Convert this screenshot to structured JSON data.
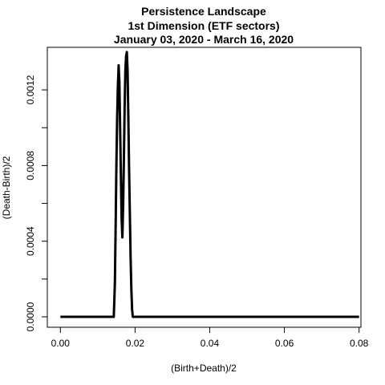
{
  "chart_data": {
    "type": "line",
    "title_lines": [
      "Persistence Landscape",
      "1st Dimension (ETF sectors)",
      "January 03, 2020 - March 16, 2020"
    ],
    "xlabel": "(Birth+Death)/2",
    "ylabel": "(Death-Birth)/2",
    "xlim": [
      -0.0035,
      0.0805
    ],
    "ylim": [
      -5.5e-05,
      0.001425
    ],
    "x_ticks": [
      0.0,
      0.02,
      0.04,
      0.06,
      0.08
    ],
    "x_tick_labels": [
      "0.00",
      "0.02",
      "0.04",
      "0.06",
      "0.08"
    ],
    "y_ticks": [
      0.0,
      0.0004,
      0.0008,
      0.0012
    ],
    "y_tick_labels": [
      "0.0000",
      "0.0004",
      "0.0008",
      "0.0012"
    ],
    "y_minor_ticks": [
      0.0002,
      0.0006,
      0.001
    ],
    "grid": false,
    "series": [
      {
        "color": "#000000",
        "x": [
          0.0,
          0.0143,
          0.0146,
          0.0148,
          0.015,
          0.0152,
          0.0154,
          0.0156,
          0.0158,
          0.016,
          0.0162,
          0.0164,
          0.0166,
          0.0168,
          0.017,
          0.0172,
          0.0174,
          0.0176,
          0.0178,
          0.018,
          0.0182,
          0.0184,
          0.0186,
          0.0188,
          0.019,
          0.0192,
          0.0194,
          0.0196,
          0.02,
          0.08
        ],
        "y": [
          0.0,
          0.0,
          0.00018,
          0.00048,
          0.0008,
          0.00105,
          0.00122,
          0.00133,
          0.00124,
          0.001,
          0.00075,
          0.00052,
          0.00042,
          0.00058,
          0.00082,
          0.0011,
          0.0013,
          0.00138,
          0.0014,
          0.0013,
          0.00105,
          0.00078,
          0.00055,
          0.00032,
          0.00015,
          4e-05,
          0.0,
          0.0,
          0.0,
          0.0
        ]
      }
    ]
  }
}
